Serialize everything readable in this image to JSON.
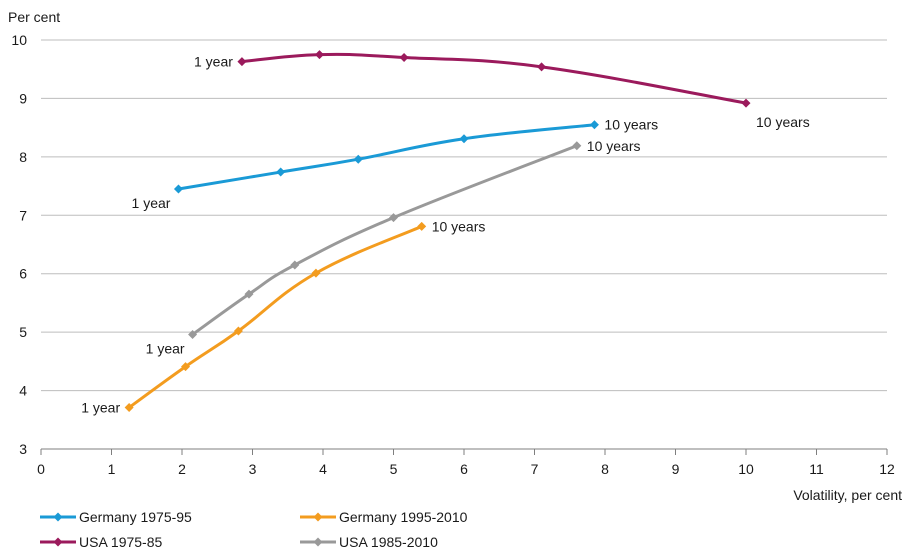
{
  "chart_data": {
    "type": "line",
    "ylabel": "Per cent",
    "xlabel": "Volatility, per cent",
    "xlim": [
      0,
      12
    ],
    "ylim": [
      3,
      10
    ],
    "x_ticks": [
      "0",
      "1",
      "2",
      "3",
      "4",
      "5",
      "6",
      "7",
      "8",
      "9",
      "10",
      "11",
      "12"
    ],
    "y_ticks": [
      "3",
      "4",
      "5",
      "6",
      "7",
      "8",
      "9",
      "10"
    ],
    "grid": "horizontal",
    "legend_position": "bottom",
    "series": [
      {
        "name": "Germany 1975-95",
        "color": "#1a9ad6",
        "points": [
          [
            1.95,
            7.45
          ],
          [
            3.4,
            7.74
          ],
          [
            4.5,
            7.96
          ],
          [
            6.0,
            8.31
          ],
          [
            7.85,
            8.55
          ]
        ],
        "annotations": [
          {
            "text": "1 year",
            "at": 0,
            "place": "left-below"
          },
          {
            "text": "10 years",
            "at": 4,
            "place": "right"
          }
        ]
      },
      {
        "name": "Germany 1995-2010",
        "color": "#f39c1f",
        "points": [
          [
            1.25,
            3.71
          ],
          [
            2.05,
            4.41
          ],
          [
            2.8,
            5.02
          ],
          [
            3.9,
            6.01
          ],
          [
            5.4,
            6.81
          ]
        ],
        "annotations": [
          {
            "text": "1 year",
            "at": 0,
            "place": "left"
          },
          {
            "text": "10 years",
            "at": 4,
            "place": "right"
          }
        ]
      },
      {
        "name": "USA 1975-85",
        "color": "#9b1a5c",
        "points": [
          [
            2.85,
            9.63
          ],
          [
            3.95,
            9.75
          ],
          [
            5.15,
            9.7
          ],
          [
            7.1,
            9.54
          ],
          [
            10.0,
            8.92
          ]
        ],
        "annotations": [
          {
            "text": "1 year",
            "at": 0,
            "place": "left"
          },
          {
            "text": "10 years",
            "at": 4,
            "place": "below-right"
          }
        ]
      },
      {
        "name": "USA 1985-2010",
        "color": "#999999",
        "points": [
          [
            2.15,
            4.96
          ],
          [
            2.95,
            5.65
          ],
          [
            3.6,
            6.15
          ],
          [
            5.0,
            6.96
          ],
          [
            7.6,
            8.19
          ]
        ],
        "annotations": [
          {
            "text": "1 year",
            "at": 0,
            "place": "left-below"
          },
          {
            "text": "10 years",
            "at": 4,
            "place": "right"
          }
        ]
      }
    ]
  }
}
